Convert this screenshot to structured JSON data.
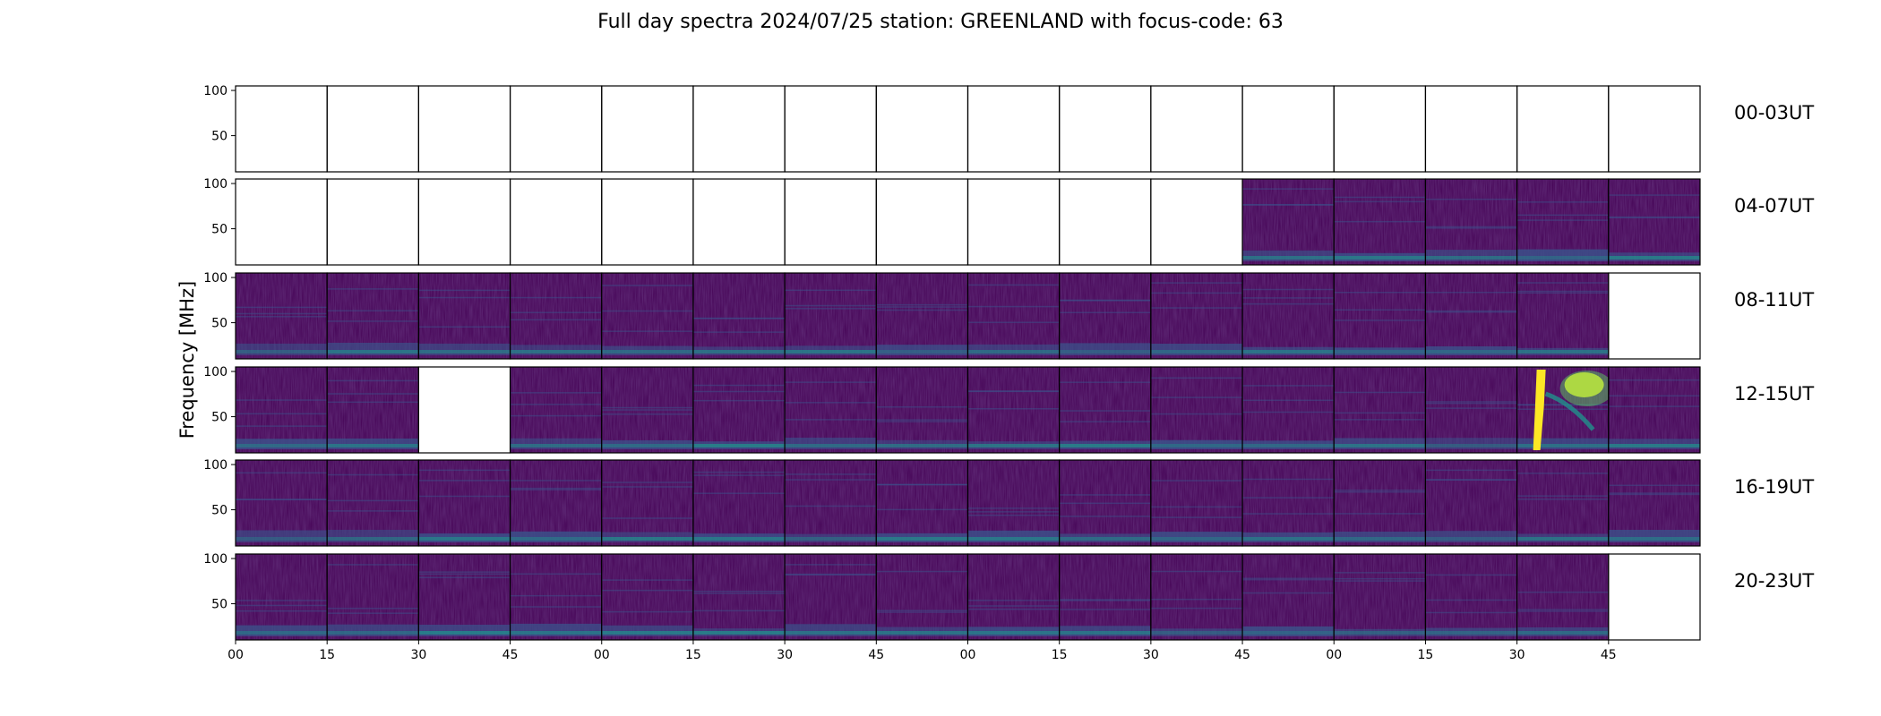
{
  "chart_data": {
    "type": "heatmap",
    "title": "Full day spectra 2024/07/25 station: GREENLAND with focus-code: 63",
    "ylabel": "Frequency [MHz]",
    "xlabel": "",
    "yticks": [
      "100",
      "50"
    ],
    "ylim": [
      10,
      105
    ],
    "xticks": [
      "00",
      "15",
      "30",
      "45",
      "00",
      "15",
      "30",
      "45",
      "00",
      "15",
      "30",
      "45",
      "00",
      "15",
      "30",
      "45"
    ],
    "panels_per_row": 16,
    "minutes_per_panel": 15,
    "colormap": [
      "#440154",
      "#3b528b",
      "#21918c",
      "#5ec962",
      "#fde725"
    ],
    "rows": [
      {
        "label": "00-03UT",
        "panels": [
          "empty",
          "empty",
          "empty",
          "empty",
          "empty",
          "empty",
          "empty",
          "empty",
          "empty",
          "empty",
          "empty",
          "empty",
          "empty",
          "empty",
          "empty",
          "empty"
        ]
      },
      {
        "label": "04-07UT",
        "panels": [
          "empty",
          "empty",
          "empty",
          "empty",
          "empty",
          "empty",
          "empty",
          "empty",
          "empty",
          "empty",
          "empty",
          "data",
          "data",
          "data",
          "data",
          "data"
        ]
      },
      {
        "label": "08-11UT",
        "panels": [
          "data",
          "data",
          "data",
          "data",
          "data",
          "data",
          "data",
          "data",
          "data",
          "data",
          "data",
          "data",
          "data",
          "data",
          "data",
          "empty"
        ]
      },
      {
        "label": "12-15UT",
        "panels": [
          "data",
          "data",
          "empty",
          "data",
          "data",
          "data",
          "data",
          "data",
          "data",
          "data",
          "data",
          "data",
          "data",
          "data",
          "burst",
          "data"
        ]
      },
      {
        "label": "16-19UT",
        "panels": [
          "data",
          "data",
          "data",
          "data",
          "data",
          "data",
          "data",
          "data",
          "data",
          "data",
          "data",
          "data",
          "data",
          "data",
          "data",
          "data"
        ]
      },
      {
        "label": "20-23UT",
        "panels": [
          "data",
          "data",
          "data",
          "data",
          "data",
          "data",
          "data",
          "data",
          "data",
          "data",
          "data",
          "data",
          "data",
          "data",
          "data",
          "empty"
        ]
      }
    ]
  }
}
